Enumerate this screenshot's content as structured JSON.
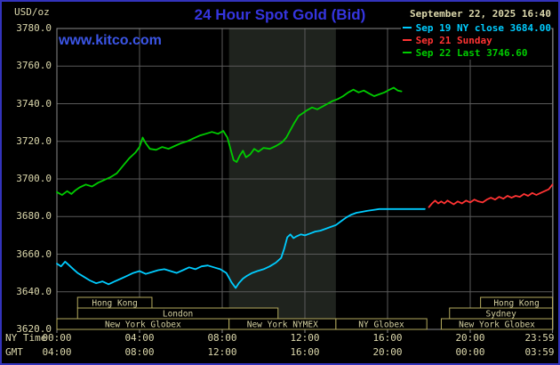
{
  "header": {
    "units": "USD/oz",
    "title": "24 Hour Spot Gold (Bid)",
    "datetime": "September 22, 2025 16:40",
    "watermark": "www.kitco.com",
    "legend": [
      {
        "label": "Sep 19 NY close 3684.00",
        "color": "#00ccff"
      },
      {
        "label": "Sep 21 Sunday",
        "color": "#ff3333"
      },
      {
        "label": "Sep 22 Last 3746.60",
        "color": "#00cc00"
      }
    ]
  },
  "chart_data": {
    "type": "line",
    "title": "24 Hour Spot Gold (Bid)",
    "ylabel": "USD/oz",
    "ylim": [
      3620,
      3780
    ],
    "yticks": [
      "3780.0",
      "3760.0",
      "3740.0",
      "3720.0",
      "3700.0",
      "3680.0",
      "3660.0",
      "3640.0",
      "3620.0"
    ],
    "xlim_hours": [
      0,
      24
    ],
    "xticks": {
      "hours": [
        0,
        4,
        8,
        12,
        16,
        20,
        23.983
      ],
      "rows": [
        {
          "name": "NY Time",
          "labels": [
            "00:00",
            "04:00",
            "08:00",
            "12:00",
            "16:00",
            "20:00",
            "23:59"
          ]
        },
        {
          "name": "GMT",
          "labels": [
            "04:00",
            "08:00",
            "12:00",
            "16:00",
            "20:00",
            "00:00",
            "03:59"
          ]
        }
      ]
    },
    "grid": true,
    "legend_position": "top-right",
    "colors": {
      "background": "#000000",
      "frame_blue": "#3333bb",
      "plot_border": "#8a8a8a",
      "grid": "#5a5a5a",
      "band": "#1f231e",
      "title_blue": "#3535e0",
      "watermark_blue": "#3b55e6",
      "label_tan": "#dcd8ac",
      "session_border_tan": "#b4aa5e",
      "session_text_tan": "#d4d0a0",
      "cyan": "#00ccff",
      "red": "#ff3333",
      "green": "#00cc00"
    },
    "nymex_band": {
      "start_h": 8.33,
      "end_h": 13.5
    },
    "series": [
      {
        "name": "Sep 19 NY close",
        "color": "#00ccff",
        "points": [
          [
            0,
            3655
          ],
          [
            0.2,
            3653.5
          ],
          [
            0.4,
            3656
          ],
          [
            0.6,
            3654
          ],
          [
            0.8,
            3652
          ],
          [
            1,
            3650
          ],
          [
            1.3,
            3648
          ],
          [
            1.6,
            3646
          ],
          [
            1.9,
            3644.5
          ],
          [
            2.2,
            3645.5
          ],
          [
            2.5,
            3644
          ],
          [
            2.8,
            3645.5
          ],
          [
            3.1,
            3647
          ],
          [
            3.4,
            3648.5
          ],
          [
            3.7,
            3650
          ],
          [
            4,
            3651
          ],
          [
            4.3,
            3649.5
          ],
          [
            4.6,
            3650.5
          ],
          [
            4.9,
            3651.5
          ],
          [
            5.2,
            3652
          ],
          [
            5.5,
            3651
          ],
          [
            5.8,
            3650
          ],
          [
            6.1,
            3651.5
          ],
          [
            6.4,
            3653
          ],
          [
            6.7,
            3652
          ],
          [
            7,
            3653.5
          ],
          [
            7.3,
            3654
          ],
          [
            7.6,
            3653
          ],
          [
            7.9,
            3652
          ],
          [
            8.2,
            3650
          ],
          [
            8.45,
            3645
          ],
          [
            8.65,
            3642
          ],
          [
            8.8,
            3644.5
          ],
          [
            9,
            3647
          ],
          [
            9.2,
            3648.5
          ],
          [
            9.45,
            3650
          ],
          [
            9.7,
            3651
          ],
          [
            10,
            3652
          ],
          [
            10.3,
            3653.5
          ],
          [
            10.6,
            3655.5
          ],
          [
            10.85,
            3658
          ],
          [
            11,
            3663
          ],
          [
            11.15,
            3669
          ],
          [
            11.3,
            3670.5
          ],
          [
            11.45,
            3668.5
          ],
          [
            11.6,
            3669.5
          ],
          [
            11.8,
            3670.5
          ],
          [
            12,
            3670
          ],
          [
            12.25,
            3671
          ],
          [
            12.5,
            3672
          ],
          [
            12.75,
            3672.5
          ],
          [
            13,
            3673.5
          ],
          [
            13.25,
            3674.5
          ],
          [
            13.5,
            3675.5
          ],
          [
            13.75,
            3677.5
          ],
          [
            14,
            3679.5
          ],
          [
            14.25,
            3681
          ],
          [
            14.5,
            3682
          ],
          [
            14.75,
            3682.5
          ],
          [
            15,
            3683
          ],
          [
            15.3,
            3683.5
          ],
          [
            15.6,
            3684
          ],
          [
            16,
            3684
          ],
          [
            17.8,
            3684
          ]
        ]
      },
      {
        "name": "Sep 21 Sunday",
        "color": "#ff3333",
        "points": [
          [
            18,
            3685
          ],
          [
            18.15,
            3687
          ],
          [
            18.3,
            3688.5
          ],
          [
            18.45,
            3687
          ],
          [
            18.6,
            3688
          ],
          [
            18.75,
            3687
          ],
          [
            18.9,
            3688.5
          ],
          [
            19.05,
            3687.5
          ],
          [
            19.2,
            3686.5
          ],
          [
            19.4,
            3688
          ],
          [
            19.6,
            3687
          ],
          [
            19.8,
            3688.5
          ],
          [
            20,
            3687.5
          ],
          [
            20.2,
            3689
          ],
          [
            20.4,
            3688
          ],
          [
            20.6,
            3687.5
          ],
          [
            20.8,
            3689
          ],
          [
            21,
            3690
          ],
          [
            21.2,
            3689
          ],
          [
            21.4,
            3690.5
          ],
          [
            21.6,
            3689.5
          ],
          [
            21.8,
            3691
          ],
          [
            22,
            3690
          ],
          [
            22.2,
            3691
          ],
          [
            22.4,
            3690.5
          ],
          [
            22.6,
            3692
          ],
          [
            22.8,
            3691
          ],
          [
            23,
            3692.5
          ],
          [
            23.2,
            3691.5
          ],
          [
            23.4,
            3692.5
          ],
          [
            23.6,
            3693.5
          ],
          [
            23.8,
            3694.5
          ],
          [
            23.98,
            3697
          ]
        ]
      },
      {
        "name": "Sep 22 Last",
        "color": "#00cc00",
        "points": [
          [
            0,
            3693
          ],
          [
            0.25,
            3691.5
          ],
          [
            0.5,
            3693.5
          ],
          [
            0.7,
            3692
          ],
          [
            0.9,
            3694
          ],
          [
            1.1,
            3695.5
          ],
          [
            1.4,
            3697
          ],
          [
            1.7,
            3696
          ],
          [
            2,
            3698
          ],
          [
            2.3,
            3699.5
          ],
          [
            2.6,
            3701
          ],
          [
            2.9,
            3703
          ],
          [
            3.2,
            3707
          ],
          [
            3.5,
            3711
          ],
          [
            3.8,
            3714
          ],
          [
            4,
            3717
          ],
          [
            4.15,
            3722
          ],
          [
            4.3,
            3719
          ],
          [
            4.5,
            3716
          ],
          [
            4.8,
            3715.5
          ],
          [
            5.1,
            3717
          ],
          [
            5.4,
            3716
          ],
          [
            5.7,
            3717.5
          ],
          [
            6,
            3719
          ],
          [
            6.3,
            3720
          ],
          [
            6.6,
            3721.5
          ],
          [
            6.9,
            3723
          ],
          [
            7.2,
            3724
          ],
          [
            7.5,
            3725
          ],
          [
            7.8,
            3724
          ],
          [
            8.05,
            3725.5
          ],
          [
            8.25,
            3722
          ],
          [
            8.4,
            3716
          ],
          [
            8.55,
            3710
          ],
          [
            8.7,
            3709
          ],
          [
            8.85,
            3712.5
          ],
          [
            9,
            3715
          ],
          [
            9.15,
            3711.5
          ],
          [
            9.35,
            3713
          ],
          [
            9.55,
            3716
          ],
          [
            9.75,
            3714.5
          ],
          [
            10,
            3716.5
          ],
          [
            10.3,
            3716
          ],
          [
            10.6,
            3717.5
          ],
          [
            10.9,
            3719.5
          ],
          [
            11.1,
            3722
          ],
          [
            11.3,
            3726
          ],
          [
            11.5,
            3730
          ],
          [
            11.7,
            3733.5
          ],
          [
            11.9,
            3735
          ],
          [
            12.1,
            3736.5
          ],
          [
            12.35,
            3738
          ],
          [
            12.6,
            3737
          ],
          [
            12.85,
            3738.5
          ],
          [
            13.1,
            3740
          ],
          [
            13.35,
            3741.5
          ],
          [
            13.6,
            3742.5
          ],
          [
            13.85,
            3744
          ],
          [
            14.1,
            3746
          ],
          [
            14.35,
            3747.5
          ],
          [
            14.6,
            3746
          ],
          [
            14.85,
            3747
          ],
          [
            15.1,
            3745.5
          ],
          [
            15.35,
            3744
          ],
          [
            15.6,
            3745
          ],
          [
            15.85,
            3746
          ],
          [
            16.1,
            3747.5
          ],
          [
            16.3,
            3748.5
          ],
          [
            16.5,
            3747
          ],
          [
            16.67,
            3746.6
          ]
        ]
      }
    ],
    "sessions": [
      {
        "row": 0,
        "label": "Hong Kong",
        "start_h": 1.0,
        "end_h": 4.6
      },
      {
        "row": 0,
        "label": "Hong Kong",
        "start_h": 20.5,
        "end_h": 23.98
      },
      {
        "row": 1,
        "label": "London",
        "start_h": 1.0,
        "end_h": 10.7
      },
      {
        "row": 1,
        "label": "Sydney",
        "start_h": 19.0,
        "end_h": 23.98
      },
      {
        "row": 2,
        "label": "New York Globex",
        "start_h": 0.0,
        "end_h": 8.33
      },
      {
        "row": 2,
        "label": "New York NYMEX",
        "start_h": 8.33,
        "end_h": 13.5
      },
      {
        "row": 2,
        "label": "NY Globex",
        "start_h": 13.5,
        "end_h": 17.9
      },
      {
        "row": 2,
        "label": "New York Globex",
        "start_h": 18.6,
        "end_h": 23.98
      }
    ]
  }
}
